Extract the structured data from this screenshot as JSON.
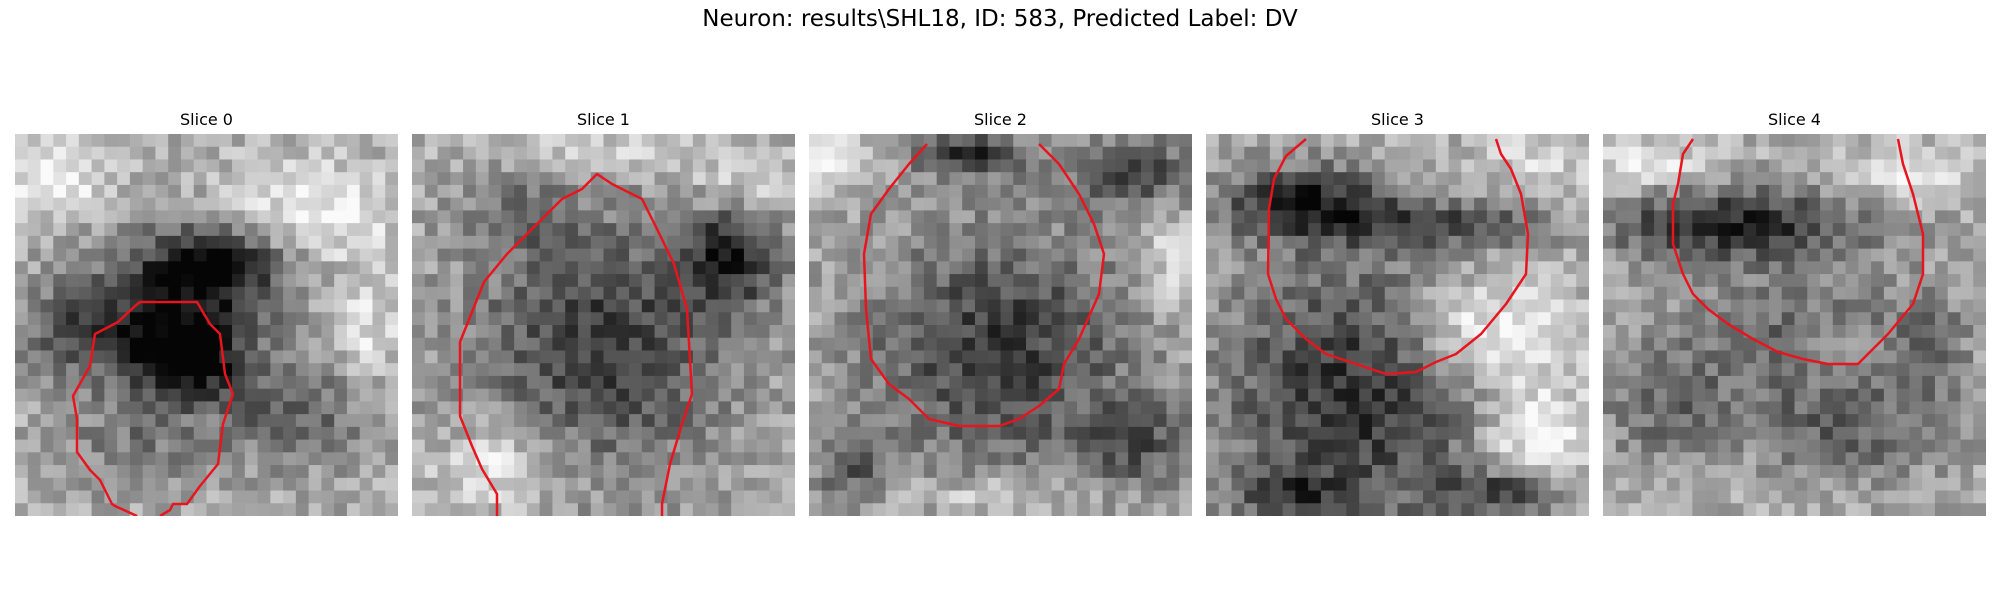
{
  "figure": {
    "title": "Neuron: results\\SHL18, ID: 583, Predicted Label: DV"
  },
  "contour_color": "#e8141e",
  "panels": [
    {
      "title": "Slice 0"
    },
    {
      "title": "Slice 1"
    },
    {
      "title": "Slice 2"
    },
    {
      "title": "Slice 3"
    },
    {
      "title": "Slice 4"
    }
  ]
}
